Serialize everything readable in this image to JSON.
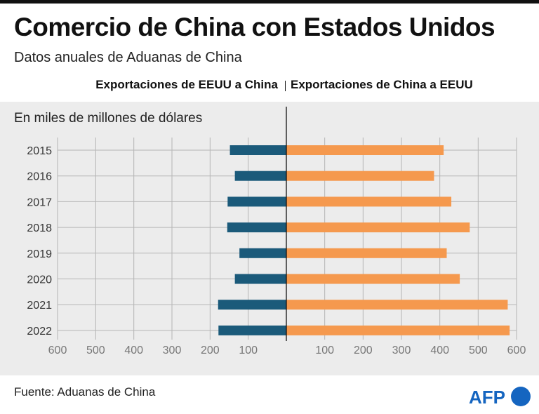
{
  "header": {
    "title": "Comercio de China con Estados Unidos",
    "subtitle": "Datos anuales de Aduanas de China"
  },
  "legend": {
    "left": "Exportaciones de EEUU a China",
    "right": "Exportaciones de China a EEUU"
  },
  "unit_label": "En miles de millones de dólares",
  "footer": {
    "source": "Fuente: Aduanas de China",
    "logo_text": "AFP"
  },
  "colors": {
    "us_exports": "#1b5a7a",
    "china_exports": "#f5994e",
    "grid": "#b5b5b5",
    "background": "#ececec"
  },
  "chart_data": {
    "type": "bar",
    "orientation": "horizontal-butterfly",
    "categories": [
      "2015",
      "2016",
      "2017",
      "2018",
      "2019",
      "2020",
      "2021",
      "2022"
    ],
    "series": [
      {
        "name": "Exportaciones de EEUU a China",
        "side": "left",
        "values": [
          148,
          135,
          154,
          155,
          123,
          135,
          179,
          178
        ]
      },
      {
        "name": "Exportaciones de China a EEUU",
        "side": "right",
        "values": [
          410,
          385,
          430,
          478,
          418,
          452,
          577,
          582
        ]
      }
    ],
    "left_axis": {
      "ticks": [
        600,
        500,
        400,
        300,
        200,
        100
      ],
      "range": [
        0,
        600
      ]
    },
    "right_axis": {
      "ticks": [
        100,
        200,
        300,
        400,
        500,
        600
      ],
      "range": [
        0,
        600
      ]
    },
    "grid": true
  }
}
